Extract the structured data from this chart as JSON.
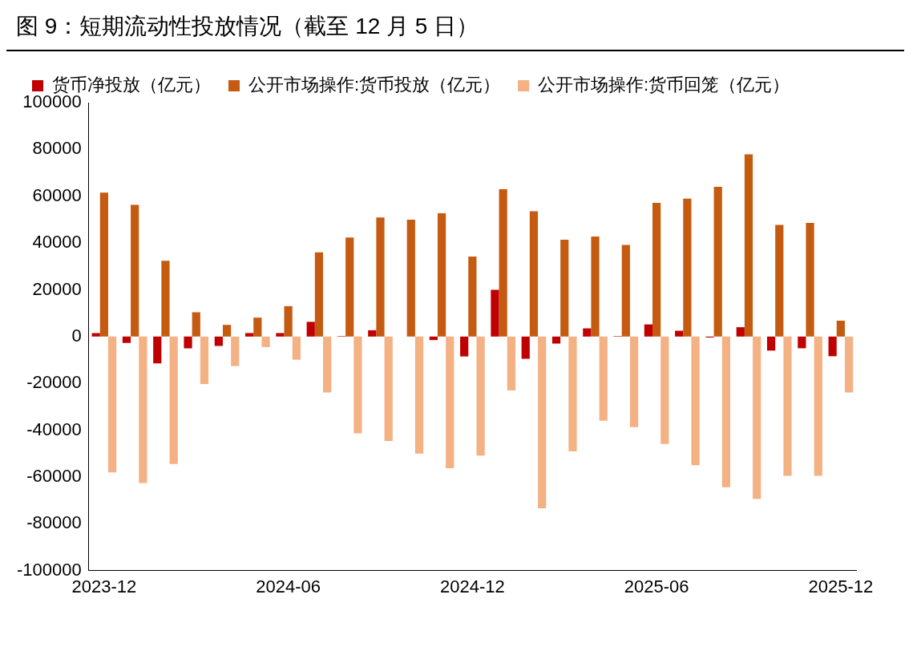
{
  "chart_data": {
    "type": "bar",
    "title": "图 9：短期流动性投放情况（截至 12 月 5 日）",
    "categories": [
      "2023-12",
      null,
      null,
      null,
      null,
      null,
      "2024-06",
      null,
      null,
      null,
      null,
      null,
      "2024-12",
      null,
      null,
      null,
      null,
      null,
      "2025-06",
      null,
      null,
      null,
      null,
      null,
      "2025-12"
    ],
    "series": [
      {
        "name": "货币净投放（亿元）",
        "color": "#c00000",
        "values": [
          1500,
          -2700,
          -11500,
          -5000,
          -4000,
          1500,
          1500,
          6300,
          200,
          2700,
          null,
          -1500,
          -8500,
          20000,
          -9500,
          -3000,
          3500,
          200,
          5200,
          2500,
          -400,
          4000,
          -6000,
          -5000,
          -8400
        ]
      },
      {
        "name": "公开市场操作:货币投放（亿元）",
        "color": "#c55a11",
        "values": [
          61500,
          56300,
          32400,
          10400,
          5000,
          8100,
          13000,
          36000,
          42300,
          50900,
          50000,
          52700,
          34200,
          63000,
          53600,
          41400,
          42800,
          39200,
          57200,
          59000,
          64000,
          77900,
          47700,
          48600,
          6800
        ]
      },
      {
        "name": "公开市场操作:货币回笼（亿元）",
        "color": "#f4b183",
        "values": [
          -58100,
          -62600,
          -54500,
          -20300,
          -12600,
          -4500,
          -9900,
          -23900,
          -41400,
          -44600,
          -50000,
          -56300,
          -50900,
          -23000,
          -73400,
          -49100,
          -36000,
          -38700,
          -45900,
          -55000,
          -64400,
          -69400,
          -59500,
          -59500,
          -23900
        ]
      }
    ],
    "ylim": [
      -100000,
      100000
    ],
    "yticks": [
      -100000,
      -80000,
      -60000,
      -40000,
      -20000,
      0,
      20000,
      40000,
      60000,
      80000,
      100000
    ],
    "legend": "top"
  }
}
